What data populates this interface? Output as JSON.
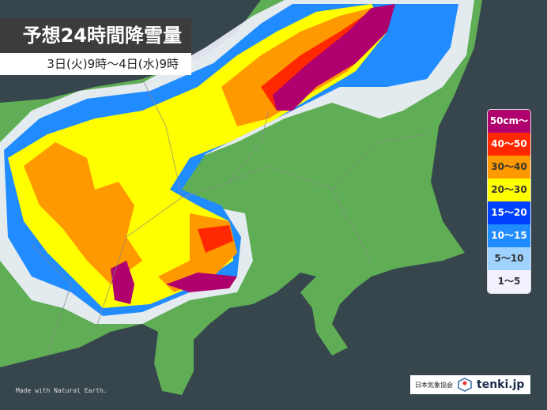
{
  "title": "予想24時間降雪量",
  "period": "3日(火)9時～4日(水)9時",
  "legend": [
    {
      "label": "50cm～",
      "color": "#b0006e",
      "text": "#ffffff"
    },
    {
      "label": "40～50",
      "color": "#ff2800",
      "text": "#ffffff"
    },
    {
      "label": "30～40",
      "color": "#ff9900",
      "text": "#333333"
    },
    {
      "label": "20～30",
      "color": "#ffff00",
      "text": "#333333"
    },
    {
      "label": "15～20",
      "color": "#0041ff",
      "text": "#ffffff"
    },
    {
      "label": "10～15",
      "color": "#218cff",
      "text": "#ffffff"
    },
    {
      "label": "5～10",
      "color": "#a0d2ff",
      "text": "#333333"
    },
    {
      "label": "1～5",
      "color": "#f2f2ff",
      "text": "#333333"
    }
  ],
  "colors": {
    "sea": "#37464d",
    "land": "#5fae55"
  },
  "credit": "Made with Natural Earth.",
  "logo": {
    "jwa": "日本気象協会",
    "brand": "tenki.jp",
    "icon": "tenki-cube-icon"
  }
}
